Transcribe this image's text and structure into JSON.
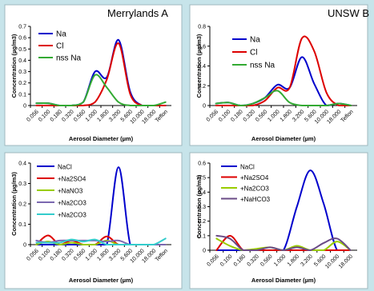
{
  "colors": {
    "background": "#c7e4ea",
    "panel": "#ffffff"
  },
  "chart_data": [
    {
      "type": "line",
      "title": "Merrylands A",
      "xlabel": "Aerosol Diameter (µm)",
      "ylabel": "Concentration (µg/m3)",
      "categories": [
        "0.056",
        "0.100",
        "0.180",
        "0.320",
        "0.560",
        "1.000",
        "1.800",
        "3.200",
        "5.600",
        "10.000",
        "18.000",
        "Teflon"
      ],
      "ylim": [
        0,
        0.7
      ],
      "yticks": [
        "0",
        "0.1",
        "0.2",
        "0.3",
        "0.4",
        "0.5",
        "0.6",
        "0.7"
      ],
      "legend_placement": "top-left",
      "series": [
        {
          "name": "Na",
          "color": "#0000cc",
          "values": [
            0.02,
            0.02,
            0.0,
            0.0,
            0.03,
            0.3,
            0.25,
            0.58,
            0.12,
            0.0,
            0.0,
            0.0
          ]
        },
        {
          "name": "Cl",
          "color": "#dd0000",
          "values": [
            0.0,
            0.0,
            0.0,
            0.0,
            0.0,
            0.03,
            0.23,
            0.55,
            0.1,
            0.0,
            0.0,
            0.0
          ]
        },
        {
          "name": "nss Na",
          "color": "#33aa33",
          "values": [
            0.02,
            0.02,
            0.0,
            0.0,
            0.03,
            0.27,
            0.16,
            0.03,
            0.0,
            0.0,
            0.0,
            0.03
          ]
        }
      ]
    },
    {
      "type": "line",
      "title": "UNSW B",
      "xlabel": "Aerosol Diameter (µm)",
      "ylabel": "Concentration (µg/m3)",
      "categories": [
        "0.056",
        "0.100",
        "0.180",
        "0.320",
        "0.560",
        "1.000",
        "1.800",
        "3.200",
        "5.600",
        "10.000",
        "18.000",
        "Teflon"
      ],
      "ylim": [
        0,
        0.8
      ],
      "yticks": [
        "0",
        "0.2",
        "0.4",
        "0.6",
        "0.8"
      ],
      "legend_placement": "top-right",
      "series": [
        {
          "name": "Na",
          "color": "#0000cc",
          "values": [
            0.02,
            0.03,
            0.0,
            0.02,
            0.08,
            0.21,
            0.18,
            0.49,
            0.22,
            0.0,
            0.02,
            0.0
          ]
        },
        {
          "name": "Cl",
          "color": "#dd0000",
          "values": [
            0.0,
            0.0,
            0.0,
            0.0,
            0.05,
            0.18,
            0.18,
            0.68,
            0.55,
            0.13,
            0.0,
            0.0
          ]
        },
        {
          "name": "nss Na",
          "color": "#33aa33",
          "values": [
            0.02,
            0.03,
            0.0,
            0.02,
            0.08,
            0.15,
            0.03,
            0.0,
            0.0,
            0.0,
            0.02,
            0.0
          ]
        }
      ]
    },
    {
      "type": "line",
      "title": "",
      "xlabel": "Aerosol Diameter (µm)",
      "ylabel": "Concentration (µg/m3)",
      "categories": [
        "0.056",
        "0.100",
        "0.180",
        "0.320",
        "0.560",
        "1.000",
        "1.800",
        "3.200",
        "5.600",
        "10.000",
        "18.000",
        "Teflon"
      ],
      "ylim": [
        0,
        0.4
      ],
      "yticks": [
        "0",
        "0.1",
        "0.2",
        "0.3",
        "0.4"
      ],
      "legend_placement": "top-left",
      "series": [
        {
          "name": "NaCl",
          "color": "#0000cc",
          "values": [
            0.0,
            0.0,
            0.0,
            0.0,
            0.0,
            0.0,
            0.0,
            0.38,
            0.0,
            0.0,
            0.0,
            0.0
          ]
        },
        {
          "name": "+Na2SO4",
          "color": "#dd0000",
          "values": [
            0.0,
            0.045,
            0.0,
            0.02,
            0.0,
            0.0,
            0.04,
            0.0,
            0.0,
            0.0,
            0.0,
            0.0
          ]
        },
        {
          "name": "+NaNO3",
          "color": "#99cc00",
          "values": [
            0.0,
            0.015,
            0.0,
            0.01,
            0.0,
            0.0,
            0.02,
            0.0,
            0.0,
            0.0,
            0.0,
            0.0
          ]
        },
        {
          "name": "+Na2CO3",
          "color": "#7b68b0",
          "values": [
            0.02,
            0.01,
            0.02,
            0.02,
            0.02,
            0.02,
            0.015,
            0.02,
            0.0,
            0.0,
            0.0,
            0.0
          ]
        },
        {
          "name": "+Na2CO3",
          "color": "#33cccc",
          "values": [
            0.01,
            0.01,
            0.01,
            0.025,
            0.015,
            0.025,
            0.0,
            0.0,
            0.0,
            0.0,
            0.0,
            0.03
          ]
        }
      ]
    },
    {
      "type": "line",
      "title": "",
      "xlabel": "Aerosol Diameter (µm)",
      "ylabel": "Concentration (µg/m3)",
      "categories": [
        "0.056",
        "0.100",
        "0.180",
        "0.320",
        "0.560",
        "1.000",
        "1.800",
        "3.200",
        "5.600",
        "10.000",
        "18.000"
      ],
      "ylim": [
        0,
        0.6
      ],
      "yticks": [
        "0",
        "0.1",
        "0.2",
        "0.3",
        "0.4",
        "0.5",
        "0.6"
      ],
      "legend_placement": "top-left",
      "series": [
        {
          "name": "NaCl",
          "color": "#0000cc",
          "values": [
            0.0,
            0.0,
            0.0,
            0.0,
            0.0,
            0.0,
            0.3,
            0.55,
            0.32,
            0.0,
            0.0
          ]
        },
        {
          "name": "+Na2SO4",
          "color": "#dd0000",
          "values": [
            0.0,
            0.1,
            0.0,
            0.0,
            0.0,
            0.0,
            0.0,
            0.0,
            0.0,
            0.0,
            0.0
          ]
        },
        {
          "name": "+Na2CO3",
          "color": "#99cc00",
          "values": [
            0.08,
            0.03,
            0.0,
            0.01,
            0.02,
            0.0,
            0.03,
            0.0,
            0.0,
            0.06,
            0.0
          ]
        },
        {
          "name": "+NaHCO3",
          "color": "#6a4b86",
          "values": [
            0.1,
            0.08,
            0.0,
            0.0,
            0.02,
            0.0,
            0.02,
            0.0,
            0.05,
            0.08,
            0.0
          ]
        }
      ]
    }
  ]
}
